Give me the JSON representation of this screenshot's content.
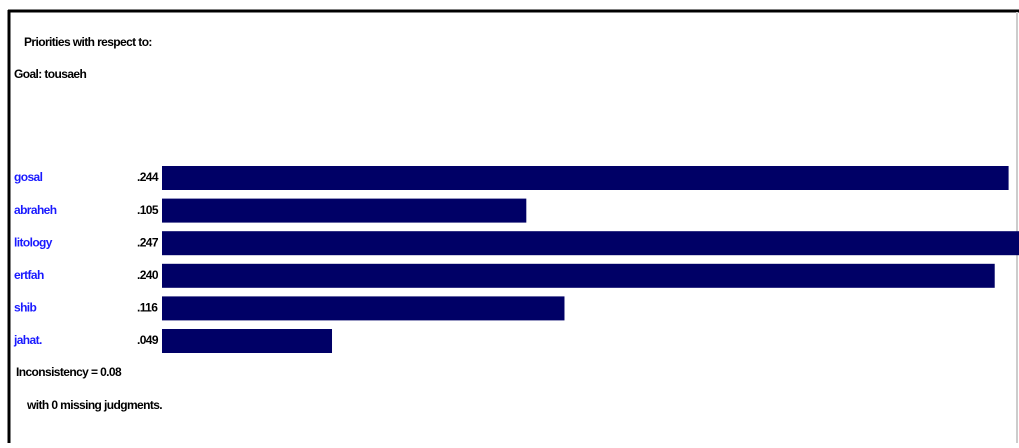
{
  "chart_data": {
    "type": "bar",
    "title": "Priorities with respect to:",
    "subtitle": "Goal: tousaeh",
    "categories": [
      "gosal",
      "abraheh",
      "litology",
      "ertfah",
      "shib",
      "jahat."
    ],
    "values": [
      0.244,
      0.105,
      0.247,
      0.24,
      0.116,
      0.049
    ],
    "value_labels": [
      ".244",
      ".105",
      ".247",
      ".240",
      ".116",
      ".049"
    ],
    "color": "#000066",
    "xlim": [
      0,
      0.247
    ],
    "annotations": [
      "Inconsistency = 0.08",
      "with 0  missing judgments."
    ]
  }
}
